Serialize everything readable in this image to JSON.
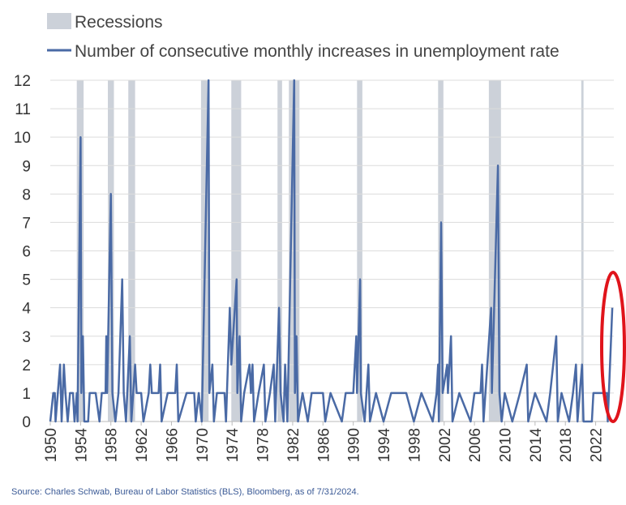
{
  "chart_data": {
    "type": "line",
    "recession_label": "Recessions",
    "source": "Source: Charles Schwab, Bureau of Labor Statistics (BLS), Bloomberg, as of 7/31/2024.",
    "recession_color": "#ccd1d9",
    "recessions": [
      [
        1953.5,
        1954.4
      ],
      [
        1957.6,
        1958.4
      ],
      [
        1960.3,
        1961.2
      ],
      [
        1969.9,
        1970.9
      ],
      [
        1973.9,
        1975.2
      ],
      [
        1980.0,
        1980.6
      ],
      [
        1981.5,
        1982.9
      ],
      [
        1990.5,
        1991.2
      ],
      [
        2001.2,
        2001.9
      ],
      [
        2007.9,
        2009.5
      ],
      [
        2020.1,
        2020.4
      ]
    ],
    "x": [
      1950.0,
      1950.4,
      1950.6,
      1950.7,
      1951.0,
      1951.3,
      1951.5,
      1951.8,
      1952.0,
      1952.3,
      1952.6,
      1953.0,
      1953.2,
      1953.5,
      1953.6,
      1954.0,
      1954.1,
      1954.3,
      1954.5,
      1955.0,
      1955.2,
      1956.0,
      1956.5,
      1956.8,
      1957.3,
      1957.4,
      1957.5,
      1958.0,
      1958.2,
      1958.6,
      1959.0,
      1959.5,
      1959.7,
      1960.0,
      1960.5,
      1960.7,
      1961.2,
      1961.4,
      1962.0,
      1962.3,
      1963.0,
      1963.2,
      1963.4,
      1964.3,
      1964.5,
      1964.7,
      1965.5,
      1966.5,
      1966.7,
      1966.9,
      1968.0,
      1969.0,
      1969.2,
      1969.6,
      1970.0,
      1970.9,
      1971.0,
      1971.4,
      1971.6,
      1972.0,
      1973.0,
      1973.2,
      1973.7,
      1973.9,
      1974.6,
      1974.7,
      1975.0,
      1975.2,
      1975.6,
      1976.3,
      1976.5,
      1976.7,
      1976.9,
      1977.5,
      1978.2,
      1978.4,
      1979.0,
      1979.5,
      1979.7,
      1980.2,
      1980.4,
      1980.8,
      1981.0,
      1981.3,
      1982.2,
      1982.3,
      1982.5,
      1982.7,
      1983.3,
      1984.0,
      1984.5,
      1986.0,
      1986.3,
      1987.0,
      1988.5,
      1989.0,
      1990.0,
      1990.4,
      1990.5,
      1990.9,
      1991.0,
      1991.5,
      1992.0,
      1992.2,
      1993.0,
      1994.0,
      1995.0,
      1997.0,
      1998.0,
      1999.0,
      2000.5,
      2001.0,
      2001.2,
      2001.3,
      2001.6,
      2001.8,
      2002.4,
      2002.5,
      2002.9,
      2003.1,
      2004.0,
      2005.5,
      2006.0,
      2006.8,
      2007.0,
      2007.2,
      2008.2,
      2008.3,
      2009.1,
      2009.3,
      2009.6,
      2010.0,
      2011.0,
      2012.0,
      2012.9,
      2013.1,
      2014.0,
      2015.5,
      2016.0,
      2016.8,
      2017.0,
      2017.5,
      2018.5,
      2019.0,
      2019.4,
      2019.6,
      2020.2,
      2020.4,
      2021.5,
      2021.7,
      2023.5,
      2023.6,
      2024.2
    ],
    "series": [
      {
        "name": "Number of consecutive monthly increases in unemployment rate",
        "color": "#4a6aa5",
        "values": [
          0,
          1,
          1,
          0,
          1,
          2,
          0,
          2,
          1,
          0,
          1,
          1,
          0,
          1,
          0,
          10,
          1,
          3,
          0,
          0,
          1,
          1,
          0,
          1,
          1,
          3,
          1,
          8,
          1,
          0,
          1,
          5,
          1,
          0,
          3,
          0,
          2,
          1,
          1,
          0,
          1,
          2,
          1,
          1,
          2,
          0,
          1,
          1,
          2,
          0,
          1,
          1,
          0,
          1,
          0,
          12,
          1,
          2,
          0,
          1,
          1,
          0,
          4,
          2,
          5,
          1,
          3,
          0,
          1,
          2,
          1,
          2,
          0,
          1,
          2,
          0,
          1,
          2,
          0,
          4,
          1,
          0,
          2,
          0,
          12,
          1,
          3,
          0,
          1,
          0,
          1,
          1,
          0,
          1,
          0,
          1,
          1,
          3,
          1,
          5,
          1,
          0,
          2,
          0,
          1,
          0,
          1,
          1,
          0,
          1,
          0,
          1,
          2,
          0,
          7,
          1,
          2,
          1,
          3,
          0,
          1,
          0,
          1,
          1,
          2,
          0,
          4,
          1,
          9,
          1,
          0,
          1,
          0,
          1,
          2,
          0,
          1,
          0,
          1,
          3,
          0,
          1,
          0,
          1,
          2,
          0,
          2,
          0,
          0,
          1,
          1,
          0,
          4
        ]
      }
    ],
    "xlim": [
      1950,
      2024.4
    ],
    "xticks": [
      1950,
      1954,
      1958,
      1962,
      1966,
      1970,
      1974,
      1978,
      1982,
      1986,
      1990,
      1994,
      1998,
      2002,
      2006,
      2010,
      2014,
      2018,
      2022
    ],
    "ylim": [
      0,
      12
    ],
    "yticks": [
      0,
      1,
      2,
      3,
      4,
      5,
      6,
      7,
      8,
      9,
      10,
      11,
      12
    ],
    "grid": true
  }
}
